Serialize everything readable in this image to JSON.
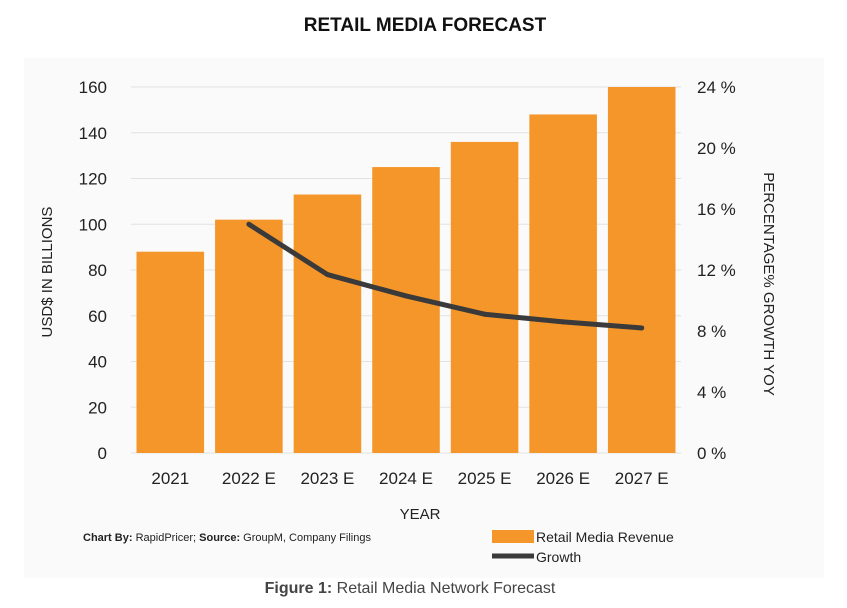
{
  "chart_data": {
    "type": "bar",
    "title": "RETAIL MEDIA FORECAST",
    "xlabel": "YEAR",
    "ylabel": "USD$ IN BILLIONS",
    "y2label": "PERCENTAGE% GROWTH YOY",
    "categories": [
      "2021",
      "2022 E",
      "2023 E",
      "2024 E",
      "2025 E",
      "2026 E",
      "2027 E"
    ],
    "ylim": [
      0,
      160
    ],
    "yticks": [
      0,
      20,
      40,
      60,
      80,
      100,
      120,
      140,
      160
    ],
    "y2lim": [
      0,
      24
    ],
    "y2ticks": [
      "0 %",
      "4 %",
      "8 %",
      "12 %",
      "16 %",
      "20 %",
      "24 %"
    ],
    "y2tick_values": [
      0,
      4,
      8,
      12,
      16,
      20,
      24
    ],
    "grid": "horizontal",
    "series": [
      {
        "name": "Retail Media Revenue",
        "type": "bar",
        "axis": "left",
        "color": "#F5962A",
        "values": [
          88,
          102,
          113,
          125,
          136,
          148,
          160
        ]
      },
      {
        "name": "Growth",
        "type": "line",
        "axis": "right",
        "color": "#3A3A3A",
        "values": [
          null,
          15.0,
          11.7,
          10.3,
          9.1,
          8.6,
          8.2
        ]
      }
    ],
    "legend_position": "bottom-right"
  },
  "footer": {
    "credit_by_label": "Chart By:",
    "credit_by_value": " RapidPricer; ",
    "credit_source_label": "Source:",
    "credit_source_value": " GroupM, Company Filings"
  },
  "caption": {
    "label": "Figure 1:",
    "text": " Retail Media Network Forecast"
  }
}
